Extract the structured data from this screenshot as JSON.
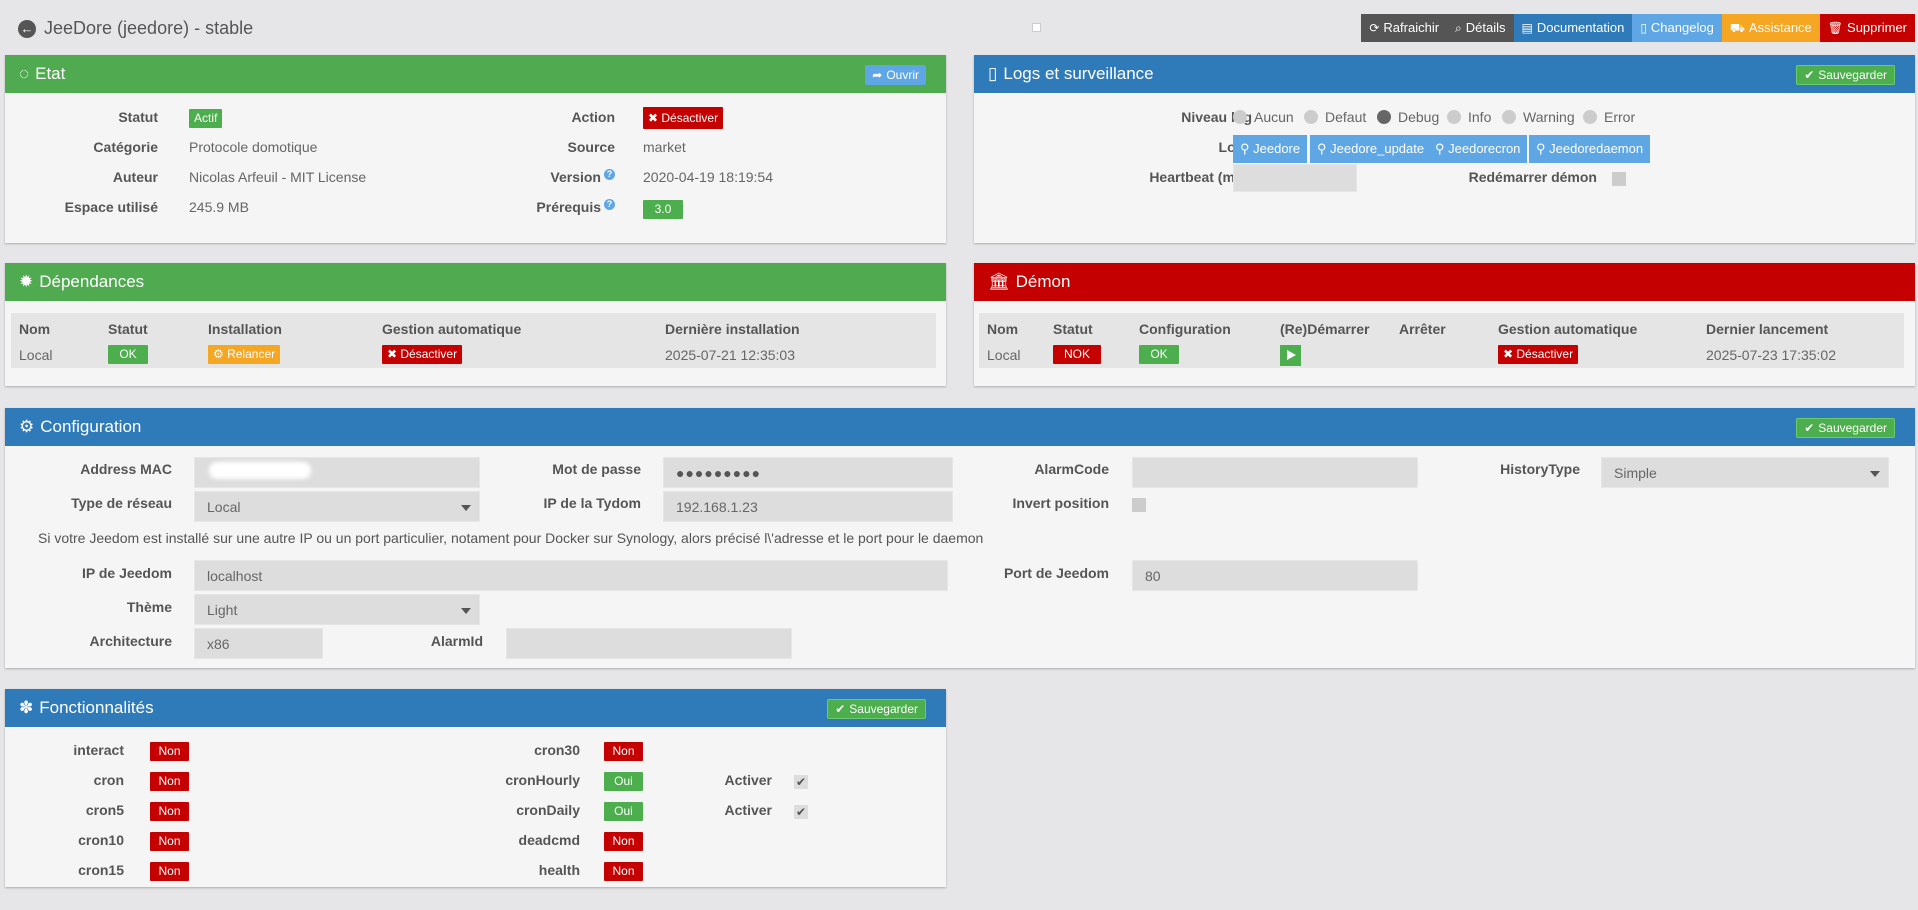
{
  "header": {
    "title": "JeeDore (jeedore) - stable",
    "actions": [
      {
        "label": "Rafraichir",
        "icon": "refresh-icon",
        "color": "#555555"
      },
      {
        "label": "Détails",
        "icon": "search-icon",
        "color": "#555555"
      },
      {
        "label": "Documentation",
        "icon": "book-icon",
        "color": "#2f7ab8"
      },
      {
        "label": "Changelog",
        "icon": "file-icon",
        "color": "#5fa6e4"
      },
      {
        "label": "Assistance",
        "icon": "truck-icon",
        "color": "#f5a623"
      },
      {
        "label": "Supprimer",
        "icon": "trash-icon",
        "color": "#c40000"
      }
    ]
  },
  "etat": {
    "title": "Etat",
    "open_label": "Ouvrir",
    "statut_label": "Statut",
    "statut_value": "Actif",
    "categorie_label": "Catégorie",
    "categorie_value": "Protocole domotique",
    "auteur_label": "Auteur",
    "auteur_value": "Nicolas Arfeuil - MIT License",
    "espace_label": "Espace utilisé",
    "espace_value": "245.9 MB",
    "action_label": "Action",
    "action_value": "Désactiver",
    "source_label": "Source",
    "source_value": "market",
    "version_label": "Version",
    "version_value": "2020-04-19 18:19:54",
    "prerequis_label": "Prérequis",
    "prerequis_value": "3.0",
    "help_glyph": "?"
  },
  "logs": {
    "title": "Logs et surveillance",
    "save_label": "Sauvegarder",
    "niveau_label": "Niveau log",
    "levels": [
      {
        "label": "Aucun",
        "selected": false
      },
      {
        "label": "Defaut",
        "selected": false
      },
      {
        "label": "Debug",
        "selected": true
      },
      {
        "label": "Info",
        "selected": false
      },
      {
        "label": "Warning",
        "selected": false
      },
      {
        "label": "Error",
        "selected": false
      }
    ],
    "logs_label": "Logs",
    "log_buttons": [
      "Jeedore",
      "Jeedore_update",
      "Jeedorecron",
      "Jeedoredaemon"
    ],
    "heartbeat_label": "Heartbeat (min)",
    "heartbeat_value": "",
    "restart_label": "Redémarrer démon"
  },
  "dependances": {
    "title": "Dépendances",
    "headers": [
      "Nom",
      "Statut",
      "Installation",
      "Gestion automatique",
      "Dernière installation"
    ],
    "row": {
      "nom": "Local",
      "statut": "OK",
      "installation": "Relancer",
      "gestion": "Désactiver",
      "derniere": "2025-07-21 12:35:03"
    }
  },
  "demon": {
    "title": "Démon",
    "headers": [
      "Nom",
      "Statut",
      "Configuration",
      "(Re)Démarrer",
      "Arrêter",
      "Gestion automatique",
      "Dernier lancement"
    ],
    "row": {
      "nom": "Local",
      "statut": "NOK",
      "configuration": "OK",
      "gestion": "Désactiver",
      "dernier": "2025-07-23 17:35:02"
    }
  },
  "configuration": {
    "title": "Configuration",
    "save_label": "Sauvegarder",
    "mac_label": "Address MAC",
    "mac_value": "",
    "password_label": "Mot de passe",
    "password_value": "●●●●●●●●●",
    "alarmcode_label": "AlarmCode",
    "alarmcode_value": "",
    "historytype_label": "HistoryType",
    "historytype_value": "Simple",
    "network_label": "Type de réseau",
    "network_value": "Local",
    "tydom_ip_label": "IP de la Tydom",
    "tydom_ip_value": "192.168.1.23",
    "invert_label": "Invert position",
    "note": "Si votre Jeedom est installé sur une autre IP ou un port particulier, notament pour Docker sur Synology, alors précisé l\\'adresse et le port pour le daemon",
    "jeedom_ip_label": "IP de Jeedom",
    "jeedom_ip_value": "localhost",
    "jeedom_port_label": "Port de Jeedom",
    "jeedom_port_value": "80",
    "theme_label": "Thème",
    "theme_value": "Light",
    "arch_label": "Architecture",
    "arch_value": "x86",
    "alarmid_label": "AlarmId",
    "alarmid_value": ""
  },
  "fonctionnalites": {
    "title": "Fonctionnalités",
    "save_label": "Sauvegarder",
    "left": [
      {
        "name": "interact",
        "value": "Non"
      },
      {
        "name": "cron",
        "value": "Non"
      },
      {
        "name": "cron5",
        "value": "Non"
      },
      {
        "name": "cron10",
        "value": "Non"
      },
      {
        "name": "cron15",
        "value": "Non"
      }
    ],
    "right": [
      {
        "name": "cron30",
        "value": "Non",
        "activer": false
      },
      {
        "name": "cronHourly",
        "value": "Oui",
        "activer": true
      },
      {
        "name": "cronDaily",
        "value": "Oui",
        "activer": true
      },
      {
        "name": "deadcmd",
        "value": "Non",
        "activer": false
      },
      {
        "name": "health",
        "value": "Non",
        "activer": false
      }
    ],
    "activer_label": "Activer",
    "check_glyph": "✔"
  }
}
